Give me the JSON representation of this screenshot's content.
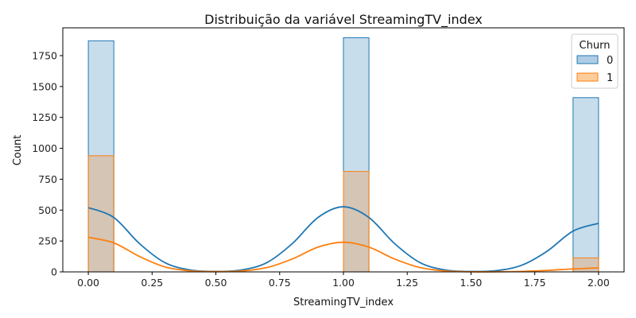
{
  "chart_data": {
    "type": "histogram",
    "title": "Distribuição da variável StreamingTV_index",
    "xlabel": "StreamingTV_index",
    "ylabel": "Count",
    "xlim": [
      -0.1,
      2.1
    ],
    "ylim": [
      0,
      1975
    ],
    "xticks": [
      "0.00",
      "0.25",
      "0.50",
      "0.75",
      "1.00",
      "1.25",
      "1.50",
      "1.75",
      "2.00"
    ],
    "yticks": [
      "0",
      "250",
      "500",
      "750",
      "1000",
      "1250",
      "1500",
      "1750"
    ],
    "bin_width": 0.1,
    "legend": {
      "title": "Churn",
      "placement": "upper right"
    },
    "series": [
      {
        "name": "0",
        "color": "#1f77b4",
        "fill": "#aecde5",
        "bins": [
          {
            "x0": 0.0,
            "x1": 0.1,
            "count": 1870
          },
          {
            "x0": 1.0,
            "x1": 1.1,
            "count": 1895
          },
          {
            "x0": 1.9,
            "x1": 2.0,
            "count": 1410
          }
        ],
        "kde": [
          [
            0.0,
            520
          ],
          [
            0.1,
            440
          ],
          [
            0.2,
            230
          ],
          [
            0.3,
            75
          ],
          [
            0.4,
            15
          ],
          [
            0.5,
            3
          ],
          [
            0.6,
            15
          ],
          [
            0.7,
            75
          ],
          [
            0.8,
            230
          ],
          [
            0.9,
            440
          ],
          [
            1.0,
            527
          ],
          [
            1.1,
            440
          ],
          [
            1.2,
            230
          ],
          [
            1.3,
            75
          ],
          [
            1.4,
            15
          ],
          [
            1.5,
            3
          ],
          [
            1.6,
            10
          ],
          [
            1.7,
            55
          ],
          [
            1.8,
            170
          ],
          [
            1.9,
            330
          ],
          [
            2.0,
            393
          ]
        ]
      },
      {
        "name": "1",
        "color": "#ff7f0e",
        "fill": "#ffcc9c",
        "bins": [
          {
            "x0": 0.0,
            "x1": 0.1,
            "count": 940
          },
          {
            "x0": 1.0,
            "x1": 1.1,
            "count": 813
          },
          {
            "x0": 1.9,
            "x1": 2.0,
            "count": 113
          }
        ],
        "kde": [
          [
            0.0,
            280
          ],
          [
            0.1,
            235
          ],
          [
            0.2,
            125
          ],
          [
            0.3,
            40
          ],
          [
            0.4,
            8
          ],
          [
            0.5,
            2
          ],
          [
            0.6,
            7
          ],
          [
            0.7,
            35
          ],
          [
            0.8,
            105
          ],
          [
            0.9,
            200
          ],
          [
            1.0,
            240
          ],
          [
            1.1,
            200
          ],
          [
            1.2,
            105
          ],
          [
            1.3,
            35
          ],
          [
            1.4,
            7
          ],
          [
            1.5,
            1
          ],
          [
            1.6,
            1
          ],
          [
            1.7,
            4
          ],
          [
            1.8,
            12
          ],
          [
            1.9,
            24
          ],
          [
            2.0,
            32
          ]
        ]
      }
    ]
  }
}
